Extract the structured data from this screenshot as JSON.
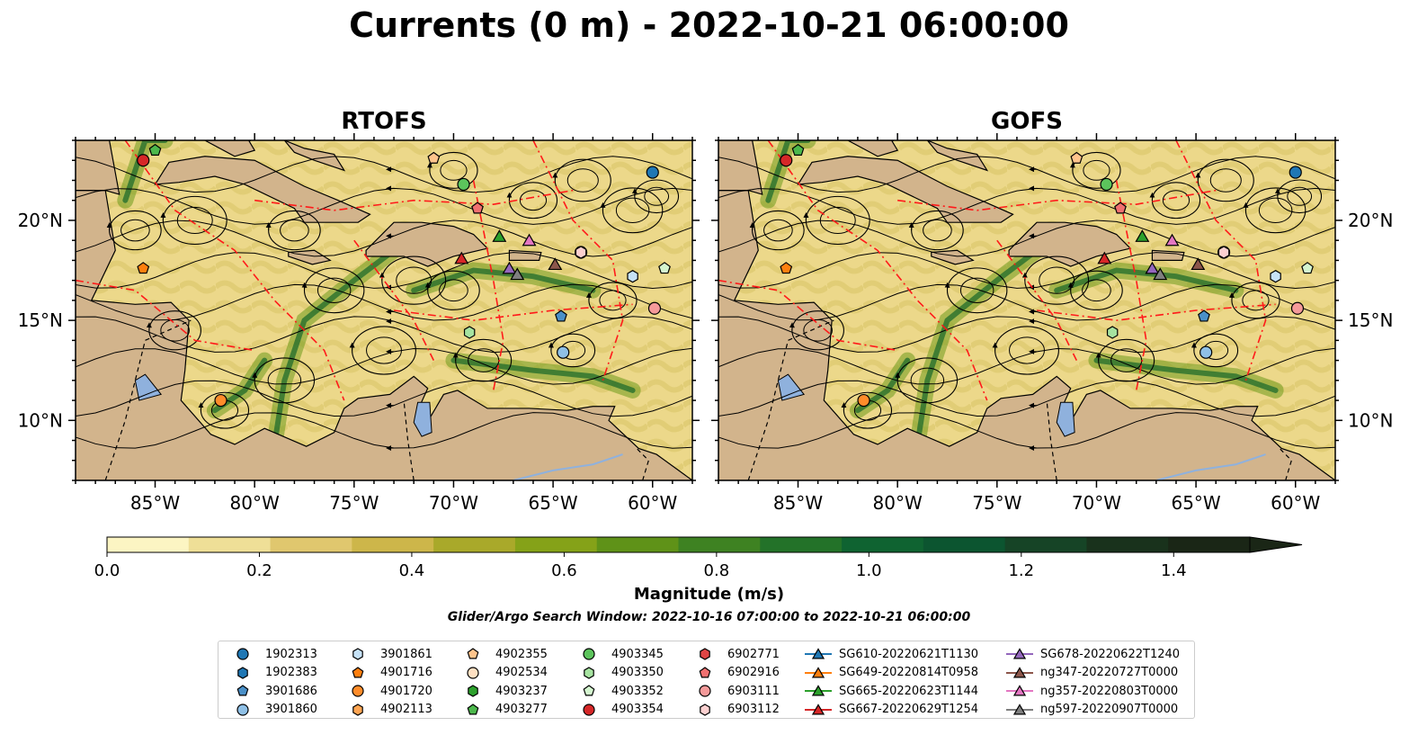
{
  "title": "Currents (0 m) - 2022-10-21 06:00:00",
  "panels": [
    {
      "title": "RTOFS"
    },
    {
      "title": "GOFS"
    }
  ],
  "map_axes": {
    "x_ticks": [
      "85°W",
      "80°W",
      "75°W",
      "70°W",
      "65°W",
      "60°W"
    ],
    "y_ticks": [
      "20°N",
      "15°N",
      "10°N"
    ]
  },
  "colorbar": {
    "label": "Magnitude (m/s)",
    "ticks": [
      "0.0",
      "0.2",
      "0.4",
      "0.6",
      "0.8",
      "1.0",
      "1.2",
      "1.4"
    ],
    "colors": [
      "#fcf5c3",
      "#efdf97",
      "#e0c76e",
      "#cdb64a",
      "#a9a92a",
      "#85a218",
      "#5f9218",
      "#3e8222",
      "#237229",
      "#0f6331",
      "#0c5530",
      "#164426",
      "#19321c",
      "#1a2616"
    ]
  },
  "search_window": "Glider/Argo Search Window: 2022-10-16 07:00:00 to 2022-10-21 06:00:00",
  "legend": {
    "columns": [
      [
        {
          "label": "1902313",
          "shape": "circle",
          "color": "#1f77b4"
        },
        {
          "label": "1902383",
          "shape": "hexagon",
          "color": "#1f77b4"
        },
        {
          "label": "3901686",
          "shape": "pentagon",
          "color": "#4a90c8"
        },
        {
          "label": "3901860",
          "shape": "circle",
          "color": "#8fc0e6"
        }
      ],
      [
        {
          "label": "3901861",
          "shape": "hexagon",
          "color": "#c6e2f7"
        },
        {
          "label": "4901716",
          "shape": "pentagon",
          "color": "#ff7f0e"
        },
        {
          "label": "4901720",
          "shape": "circle",
          "color": "#ff8c2a"
        },
        {
          "label": "4902113",
          "shape": "hexagon",
          "color": "#ffa552"
        }
      ],
      [
        {
          "label": "4902355",
          "shape": "pentagon",
          "color": "#ffc48c"
        },
        {
          "label": "4902534",
          "shape": "circle",
          "color": "#ffe0c2"
        },
        {
          "label": "4903237",
          "shape": "hexagon",
          "color": "#2ca02c"
        },
        {
          "label": "4903277",
          "shape": "pentagon",
          "color": "#4cb84c"
        }
      ],
      [
        {
          "label": "4903345",
          "shape": "circle",
          "color": "#5cc45c"
        },
        {
          "label": "4903350",
          "shape": "hexagon",
          "color": "#a6e3a0"
        },
        {
          "label": "4903352",
          "shape": "pentagon",
          "color": "#d4f5cf"
        },
        {
          "label": "4903354",
          "shape": "circle",
          "color": "#d62728"
        }
      ],
      [
        {
          "label": "6902771",
          "shape": "hexagon",
          "color": "#e04545"
        },
        {
          "label": "6902916",
          "shape": "pentagon",
          "color": "#f07070"
        },
        {
          "label": "6903111",
          "shape": "circle",
          "color": "#f59a9a"
        },
        {
          "label": "6903112",
          "shape": "hexagon",
          "color": "#fcd0d0"
        }
      ],
      [
        {
          "label": "SG610-20220621T1130",
          "shape": "triangle",
          "color": "#1f77b4"
        },
        {
          "label": "SG649-20220814T0958",
          "shape": "triangle",
          "color": "#ff7f0e"
        },
        {
          "label": "SG665-20220623T1144",
          "shape": "triangle",
          "color": "#2ca02c"
        },
        {
          "label": "SG667-20220629T1254",
          "shape": "triangle",
          "color": "#d62728"
        }
      ],
      [
        {
          "label": "SG678-20220622T1240",
          "shape": "triangle",
          "color": "#9467bd"
        },
        {
          "label": "ng347-20220727T0000",
          "shape": "triangle",
          "color": "#8c564b"
        },
        {
          "label": "ng357-20220803T0000",
          "shape": "triangle",
          "color": "#e377c2"
        },
        {
          "label": "ng597-20220907T0000",
          "shape": "triangle",
          "color": "#7f7f7f"
        }
      ]
    ]
  },
  "chart_data": {
    "type": "heatmap",
    "variable": "surface current magnitude",
    "units": "m/s",
    "depth_m": 0,
    "valid_time": "2022-10-21 06:00:00",
    "models": [
      "RTOFS",
      "GOFS"
    ],
    "lon_range": [
      -89,
      -58
    ],
    "lat_range": [
      7,
      24
    ],
    "colorbar_range": [
      0.0,
      1.5
    ],
    "colorbar_step": 0.1,
    "colorbar_extend": "max",
    "overlays": [
      "streamlines",
      "EEZ boundaries (red dash-dot)",
      "bathymetry contours",
      "national borders (black dashed)"
    ],
    "argo_floats": [
      {
        "id": "1902313",
        "lon": -60.0,
        "lat": 22.4
      },
      {
        "id": "3901686",
        "lon": -64.6,
        "lat": 15.2
      },
      {
        "id": "3901860",
        "lon": -64.5,
        "lat": 13.4
      },
      {
        "id": "3901861",
        "lon": -61.0,
        "lat": 17.2
      },
      {
        "id": "4901716",
        "lon": -85.6,
        "lat": 17.6
      },
      {
        "id": "4901720",
        "lon": -81.7,
        "lat": 11.0
      },
      {
        "id": "4902355",
        "lon": -71.0,
        "lat": 23.1
      },
      {
        "id": "4902534",
        "lon": -63.6,
        "lat": 18.4
      },
      {
        "id": "4903277",
        "lon": -85.0,
        "lat": 23.5
      },
      {
        "id": "4903345",
        "lon": -69.5,
        "lat": 21.8
      },
      {
        "id": "4903350",
        "lon": -69.2,
        "lat": 14.4
      },
      {
        "id": "4903352",
        "lon": -59.4,
        "lat": 17.6
      },
      {
        "id": "4903354",
        "lon": -85.6,
        "lat": 23.0
      },
      {
        "id": "6902916",
        "lon": -68.8,
        "lat": 20.6
      },
      {
        "id": "6903111",
        "lon": -59.9,
        "lat": 15.6
      },
      {
        "id": "6903112",
        "lon": -63.6,
        "lat": 18.4
      }
    ],
    "gliders": [
      {
        "id": "SG665-20220623T1144",
        "lon": -67.7,
        "lat": 19.2
      },
      {
        "id": "SG667-20220629T1254",
        "lon": -69.6,
        "lat": 18.1
      },
      {
        "id": "SG678-20220622T1240",
        "lon": -67.2,
        "lat": 17.6
      },
      {
        "id": "ng347-20220727T0000",
        "lon": -64.9,
        "lat": 17.8
      },
      {
        "id": "ng357-20220803T0000",
        "lon": -66.2,
        "lat": 19.0
      },
      {
        "id": "ng597-20220907T0000",
        "lon": -66.8,
        "lat": 17.3
      }
    ]
  }
}
